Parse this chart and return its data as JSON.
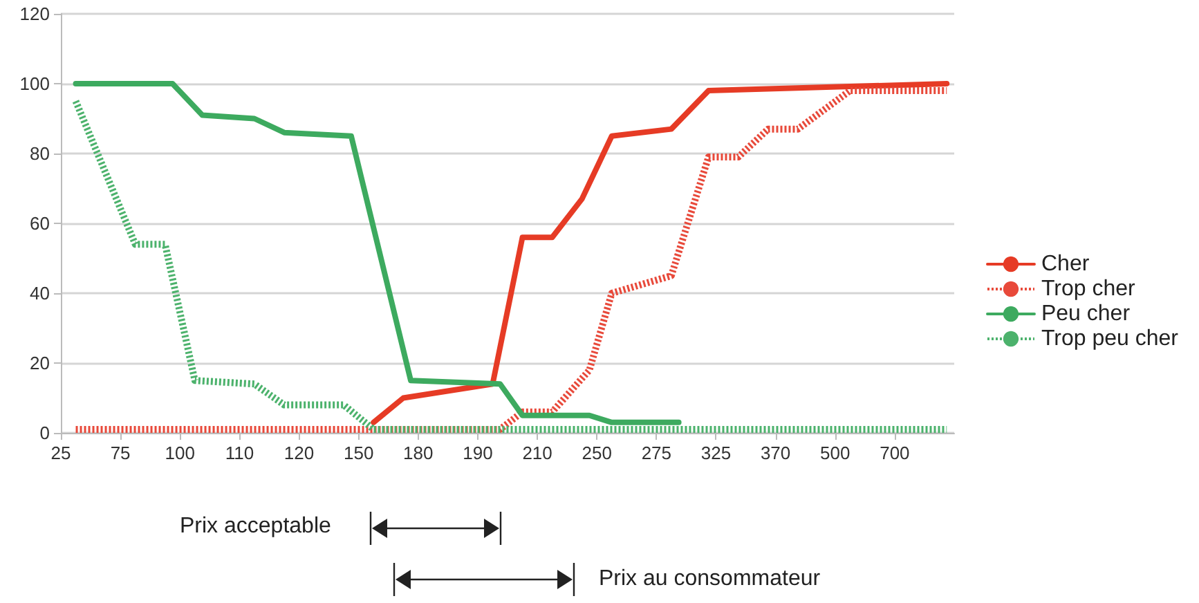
{
  "chart_data": {
    "type": "line",
    "categories": [
      "25",
      null,
      null,
      null,
      null,
      null,
      null,
      null,
      "75",
      null,
      null,
      null,
      null,
      null,
      null,
      null,
      "100",
      null,
      null,
      null,
      null,
      null,
      null,
      null,
      "110",
      null,
      null,
      null,
      null,
      null,
      null,
      null,
      "120",
      null,
      null,
      null,
      null,
      null,
      null,
      null,
      "150",
      null,
      null,
      null,
      null,
      null,
      null,
      null,
      "180",
      null,
      null,
      null,
      null,
      null,
      null,
      null,
      "190",
      null,
      null,
      null,
      null,
      null,
      null,
      null,
      "210",
      null,
      null,
      null,
      null,
      null,
      null,
      null,
      "250",
      null,
      null,
      null,
      null,
      null,
      null,
      null,
      "275",
      null,
      null,
      null,
      null,
      null,
      null,
      null,
      "325",
      null,
      null,
      null,
      null,
      null,
      null,
      null,
      "370",
      null,
      null,
      null,
      null,
      null,
      null,
      null,
      "500",
      null,
      null,
      null,
      null,
      null,
      null,
      null,
      "700",
      null,
      null,
      null,
      null,
      null,
      null,
      null,
      null
    ],
    "ylim": [
      0,
      120
    ],
    "yticks": [
      0,
      20,
      40,
      60,
      80,
      100,
      120
    ],
    "grid": "y",
    "legend": "right",
    "marker": "none",
    "series": [
      {
        "name": "Cher",
        "color": "#e63b25",
        "line_style": "solid",
        "values": [
          null,
          null,
          null,
          null,
          null,
          null,
          null,
          null,
          null,
          null,
          null,
          null,
          null,
          null,
          null,
          null,
          null,
          null,
          null,
          null,
          null,
          null,
          null,
          null,
          null,
          null,
          null,
          null,
          null,
          null,
          null,
          null,
          null,
          null,
          null,
          null,
          null,
          null,
          null,
          null,
          null,
          null,
          3,
          null,
          null,
          null,
          10,
          null,
          null,
          null,
          null,
          null,
          null,
          null,
          null,
          null,
          null,
          null,
          14,
          null,
          null,
          null,
          56,
          null,
          null,
          null,
          56,
          null,
          null,
          null,
          67,
          null,
          null,
          null,
          85,
          null,
          null,
          null,
          null,
          null,
          null,
          null,
          87,
          null,
          null,
          null,
          null,
          98,
          null,
          null,
          null,
          null,
          null,
          null,
          null,
          null,
          null,
          null,
          null,
          null,
          null,
          null,
          null,
          null,
          null,
          null,
          null,
          null,
          null,
          null,
          null,
          null,
          null,
          null,
          null,
          null,
          null,
          null,
          null,
          100,
          null
        ]
      },
      {
        "name": "Trop cher",
        "color": "#e8493a",
        "line_style": "dotted",
        "values": [
          null,
          null,
          1,
          null,
          null,
          null,
          null,
          null,
          null,
          null,
          null,
          null,
          null,
          null,
          null,
          null,
          null,
          null,
          null,
          null,
          null,
          null,
          null,
          null,
          null,
          null,
          null,
          null,
          null,
          null,
          null,
          null,
          null,
          null,
          null,
          null,
          null,
          null,
          null,
          null,
          null,
          null,
          null,
          null,
          null,
          null,
          null,
          null,
          null,
          null,
          null,
          null,
          null,
          null,
          null,
          null,
          null,
          null,
          null,
          1,
          null,
          null,
          6,
          null,
          null,
          null,
          6,
          null,
          null,
          null,
          null,
          18,
          null,
          null,
          40,
          null,
          null,
          null,
          null,
          null,
          null,
          null,
          45,
          null,
          null,
          null,
          null,
          79,
          null,
          null,
          null,
          79,
          null,
          null,
          null,
          87,
          null,
          null,
          null,
          87,
          null,
          null,
          null,
          null,
          null,
          null,
          98,
          null,
          null,
          null,
          null,
          null,
          null,
          null,
          null,
          null,
          null,
          null,
          null,
          98,
          null
        ]
      },
      {
        "name": "Peu cher",
        "color": "#3daa5f",
        "line_style": "solid",
        "values": [
          null,
          null,
          100,
          null,
          null,
          null,
          null,
          null,
          null,
          null,
          null,
          null,
          null,
          null,
          null,
          100,
          null,
          null,
          null,
          91,
          null,
          null,
          null,
          null,
          null,
          null,
          90,
          null,
          null,
          null,
          86,
          null,
          null,
          null,
          null,
          null,
          null,
          null,
          null,
          85,
          null,
          null,
          null,
          null,
          null,
          null,
          null,
          15,
          null,
          null,
          null,
          null,
          null,
          null,
          null,
          null,
          null,
          null,
          null,
          14,
          null,
          null,
          5,
          null,
          null,
          null,
          null,
          null,
          null,
          null,
          null,
          5,
          null,
          null,
          3,
          null,
          null,
          null,
          null,
          null,
          null,
          null,
          null,
          3,
          null,
          null,
          null,
          null,
          null,
          null,
          null,
          null,
          null,
          null,
          null,
          null,
          null,
          null,
          null,
          null,
          null,
          null,
          null,
          null,
          null,
          null,
          null,
          null,
          null,
          null,
          null,
          null,
          null,
          null,
          null,
          null,
          null,
          null,
          null,
          null,
          null
        ]
      },
      {
        "name": "Trop peu cher",
        "color": "#4cb26c",
        "line_style": "dotted",
        "values": [
          null,
          null,
          95,
          null,
          null,
          null,
          null,
          null,
          null,
          null,
          54,
          null,
          null,
          null,
          54,
          null,
          null,
          null,
          15,
          null,
          null,
          null,
          null,
          null,
          null,
          null,
          14,
          null,
          null,
          null,
          8,
          null,
          null,
          null,
          null,
          null,
          null,
          null,
          8,
          null,
          null,
          null,
          1,
          null,
          null,
          null,
          null,
          null,
          null,
          null,
          null,
          null,
          null,
          null,
          null,
          null,
          null,
          null,
          null,
          null,
          null,
          null,
          null,
          null,
          null,
          null,
          null,
          null,
          null,
          null,
          null,
          null,
          null,
          null,
          null,
          null,
          null,
          null,
          null,
          null,
          null,
          null,
          null,
          null,
          null,
          null,
          null,
          null,
          null,
          null,
          null,
          null,
          null,
          null,
          null,
          null,
          null,
          null,
          null,
          null,
          null,
          null,
          null,
          null,
          null,
          null,
          null,
          null,
          null,
          null,
          null,
          null,
          null,
          null,
          null,
          null,
          null,
          null,
          null,
          1,
          null
        ]
      }
    ],
    "annotations": [
      "Prix acceptable",
      "Prix au consommateur"
    ]
  }
}
